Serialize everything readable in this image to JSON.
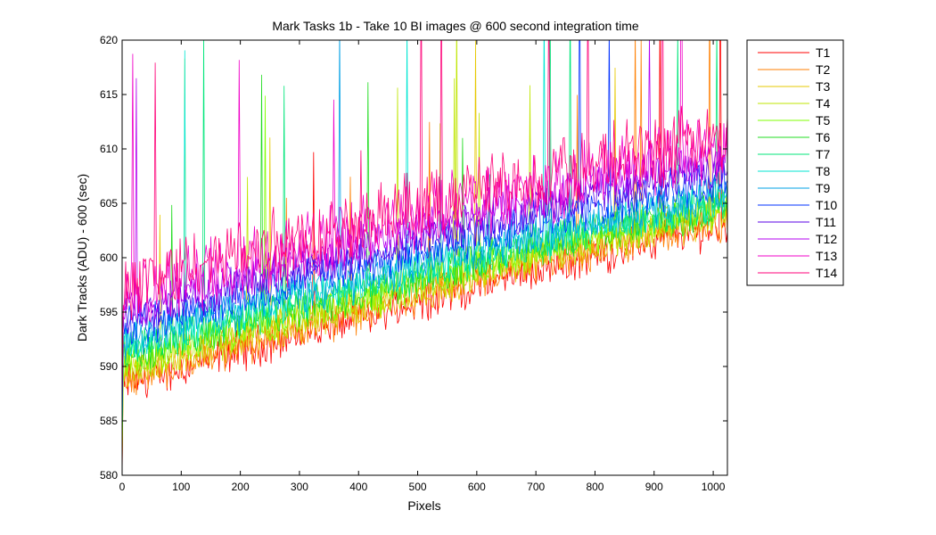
{
  "chart_data": {
    "type": "line",
    "title": "Mark Tasks 1b - Take 10 BI images @ 600 second integration time",
    "xlabel": "Pixels",
    "ylabel": "Dark Tracks (ADU) - 600 (sec)",
    "xlim": [
      0,
      1024
    ],
    "ylim": [
      580,
      620
    ],
    "xticks": [
      0,
      100,
      200,
      300,
      400,
      500,
      600,
      700,
      800,
      900,
      1000
    ],
    "yticks": [
      580,
      585,
      590,
      595,
      600,
      605,
      610,
      615,
      620
    ],
    "grid": false,
    "legend_position": "outside-right",
    "series": [
      {
        "name": "T1",
        "color": "#ff0000",
        "x": [
          0,
          50,
          100,
          200,
          300,
          400,
          500,
          600,
          700,
          800,
          900,
          1024
        ],
        "y": [
          588.5,
          589.0,
          590.0,
          591.5,
          593.0,
          594.5,
          596.0,
          597.5,
          599.0,
          600.3,
          601.7,
          603.0
        ]
      },
      {
        "name": "T2",
        "color": "#ff7f00",
        "x": [
          0,
          50,
          100,
          200,
          300,
          400,
          500,
          600,
          700,
          800,
          900,
          1024
        ],
        "y": [
          589.0,
          589.5,
          590.5,
          592.0,
          593.5,
          595.0,
          596.5,
          598.0,
          599.5,
          600.8,
          602.2,
          603.5
        ]
      },
      {
        "name": "T3",
        "color": "#e6c800",
        "x": [
          0,
          50,
          100,
          200,
          300,
          400,
          500,
          600,
          700,
          800,
          900,
          1024
        ],
        "y": [
          589.5,
          590.0,
          591.0,
          592.5,
          594.0,
          595.5,
          597.0,
          598.5,
          600.0,
          601.2,
          602.6,
          603.9
        ]
      },
      {
        "name": "T4",
        "color": "#bfe600",
        "x": [
          0,
          50,
          100,
          200,
          300,
          400,
          500,
          600,
          700,
          800,
          900,
          1024
        ],
        "y": [
          590.0,
          590.5,
          591.5,
          593.0,
          594.5,
          596.0,
          597.4,
          598.9,
          600.4,
          601.6,
          603.0,
          604.2
        ]
      },
      {
        "name": "T5",
        "color": "#7fff00",
        "x": [
          0,
          50,
          100,
          200,
          300,
          400,
          500,
          600,
          700,
          800,
          900,
          1024
        ],
        "y": [
          590.5,
          591.0,
          592.0,
          593.5,
          595.0,
          596.4,
          597.8,
          599.3,
          600.7,
          601.9,
          603.3,
          604.5
        ]
      },
      {
        "name": "T6",
        "color": "#20dc20",
        "x": [
          0,
          50,
          100,
          200,
          300,
          400,
          500,
          600,
          700,
          800,
          900,
          1024
        ],
        "y": [
          591.0,
          591.5,
          592.5,
          594.0,
          595.4,
          596.8,
          598.2,
          599.6,
          601.0,
          602.2,
          603.6,
          604.8
        ]
      },
      {
        "name": "T7",
        "color": "#00e67a",
        "x": [
          0,
          50,
          100,
          200,
          300,
          400,
          500,
          600,
          700,
          800,
          900,
          1024
        ],
        "y": [
          591.5,
          592.0,
          593.0,
          594.4,
          595.8,
          597.2,
          598.6,
          600.0,
          601.3,
          602.5,
          603.9,
          605.1
        ]
      },
      {
        "name": "T8",
        "color": "#00e6d2",
        "x": [
          0,
          50,
          100,
          200,
          300,
          400,
          500,
          600,
          700,
          800,
          900,
          1024
        ],
        "y": [
          592.0,
          592.5,
          593.5,
          594.9,
          596.3,
          597.6,
          599.0,
          600.4,
          601.7,
          602.9,
          604.3,
          605.5
        ]
      },
      {
        "name": "T9",
        "color": "#00a0e6",
        "x": [
          0,
          50,
          100,
          200,
          300,
          400,
          500,
          600,
          700,
          800,
          900,
          1024
        ],
        "y": [
          592.5,
          593.0,
          594.0,
          595.4,
          596.8,
          598.1,
          599.5,
          600.9,
          602.2,
          603.4,
          604.8,
          606.0
        ]
      },
      {
        "name": "T10",
        "color": "#0030ff",
        "x": [
          0,
          50,
          100,
          200,
          300,
          400,
          500,
          600,
          700,
          800,
          900,
          1024
        ],
        "y": [
          593.5,
          594.0,
          595.0,
          596.5,
          597.9,
          599.3,
          600.7,
          602.1,
          603.4,
          604.6,
          606.0,
          607.2
        ]
      },
      {
        "name": "T11",
        "color": "#5a00e6",
        "x": [
          0,
          50,
          100,
          200,
          300,
          400,
          500,
          600,
          700,
          800,
          900,
          1024
        ],
        "y": [
          594.5,
          595.0,
          596.0,
          597.5,
          598.9,
          600.3,
          601.7,
          603.1,
          604.4,
          605.6,
          607.0,
          608.2
        ]
      },
      {
        "name": "T12",
        "color": "#b400f0",
        "x": [
          0,
          50,
          100,
          200,
          300,
          400,
          500,
          600,
          700,
          800,
          900,
          1024
        ],
        "y": [
          595.5,
          596.0,
          597.0,
          598.5,
          599.9,
          601.3,
          602.7,
          604.1,
          605.4,
          606.6,
          608.0,
          609.2
        ]
      },
      {
        "name": "T13",
        "color": "#f000c8",
        "x": [
          0,
          50,
          100,
          200,
          300,
          400,
          500,
          600,
          700,
          800,
          900,
          1024
        ],
        "y": [
          596.5,
          597.0,
          598.0,
          599.5,
          600.9,
          602.3,
          603.7,
          605.1,
          606.4,
          607.6,
          609.0,
          610.2
        ]
      },
      {
        "name": "T14",
        "color": "#ff0078",
        "x": [
          0,
          50,
          100,
          200,
          300,
          400,
          500,
          600,
          700,
          800,
          900,
          1024
        ],
        "y": [
          597.5,
          598.0,
          599.0,
          600.5,
          601.9,
          603.3,
          604.7,
          606.1,
          607.4,
          608.6,
          610.0,
          611.0
        ]
      }
    ]
  }
}
